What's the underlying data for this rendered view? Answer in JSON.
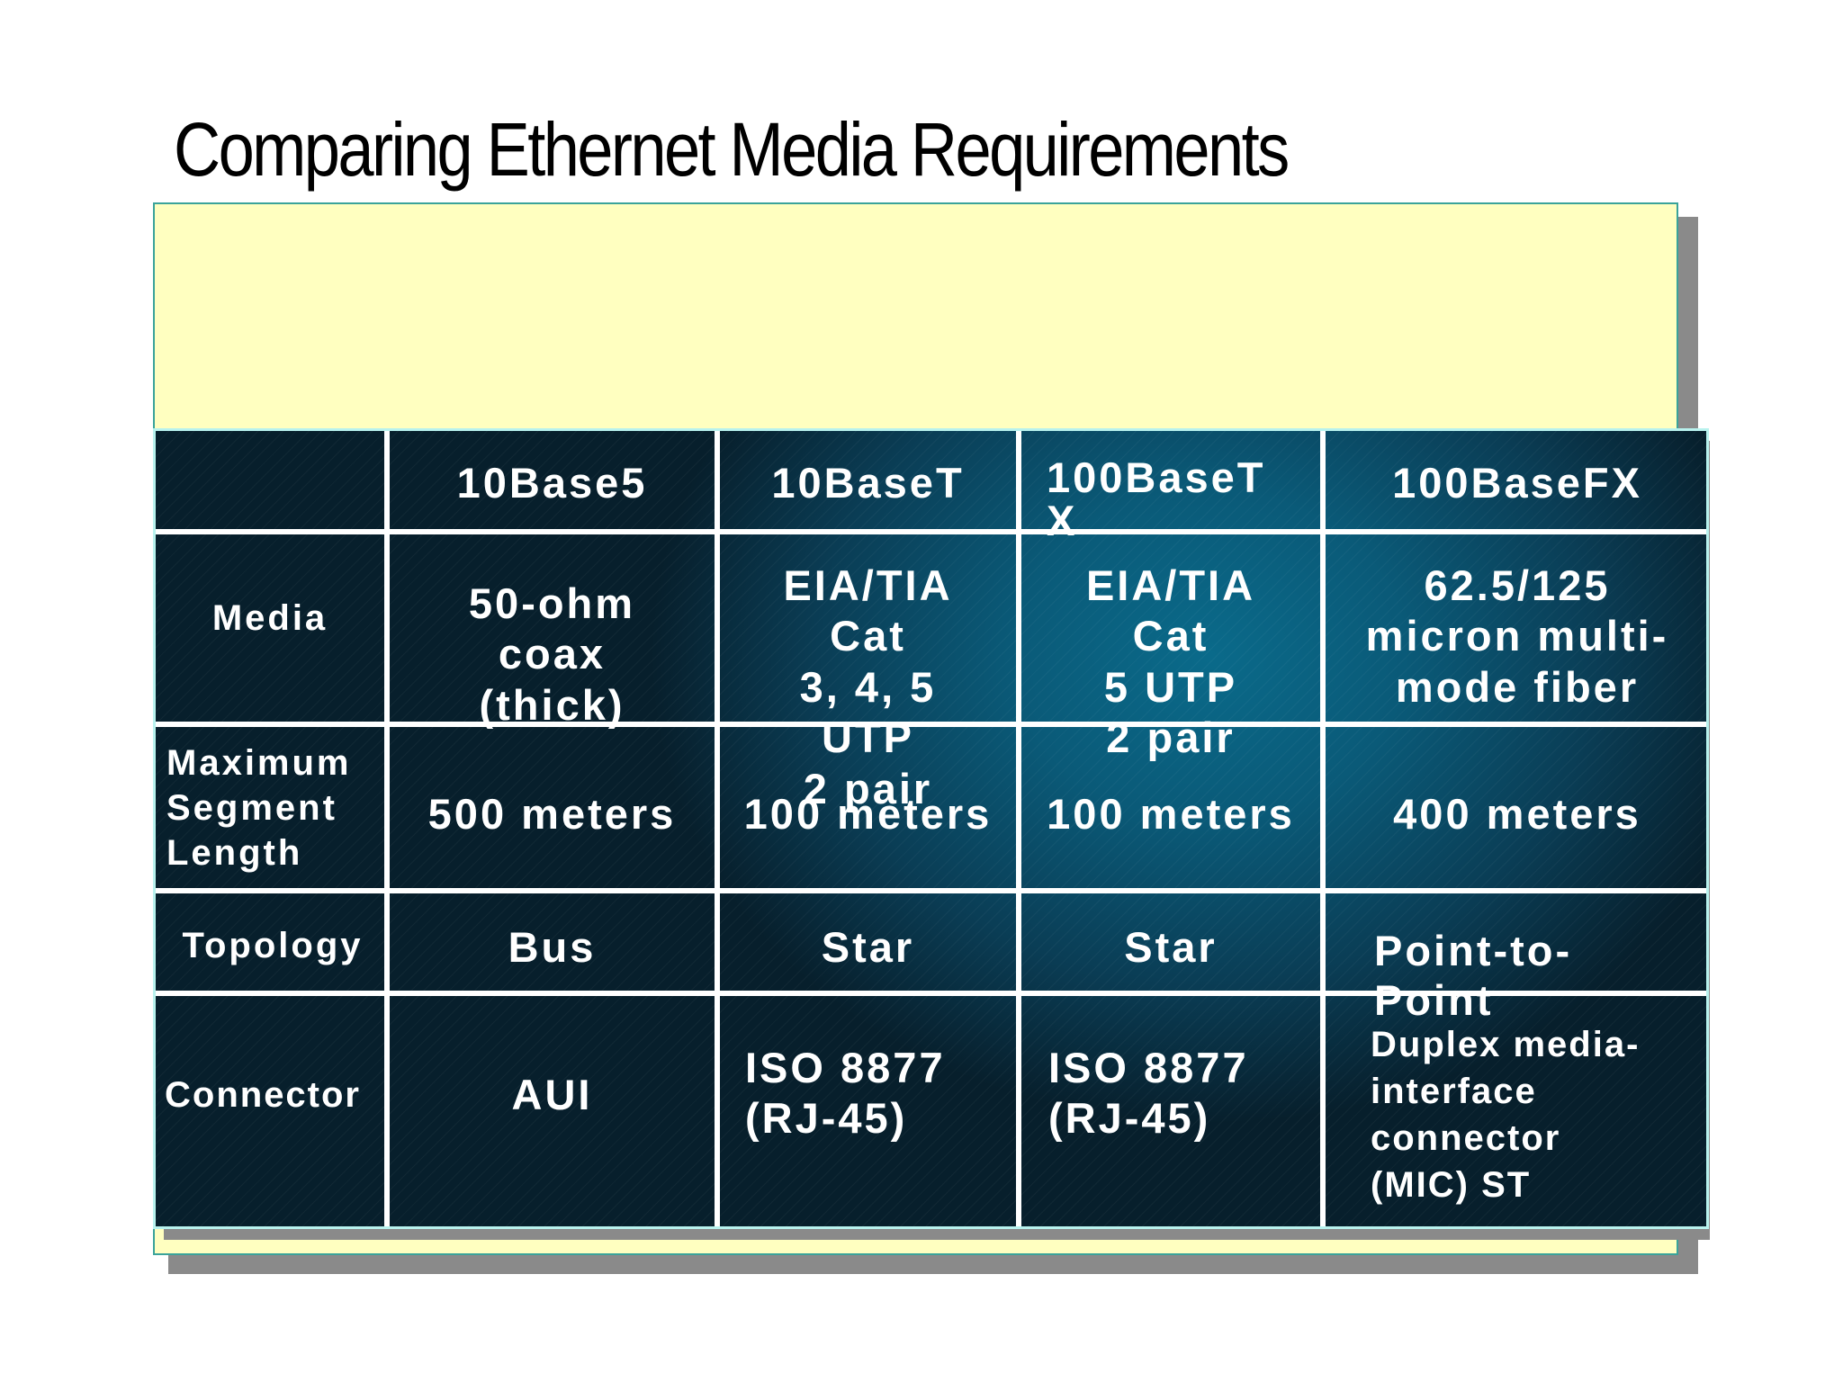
{
  "title": "Comparing Ethernet Media Requirements",
  "table": {
    "headers": [
      "",
      "10Base5",
      "10BaseT",
      "100BaseT\nX",
      "100BaseFX"
    ],
    "rows": [
      {
        "label": "Media",
        "cells": [
          "50-ohm\ncoax\n(thick)",
          "EIA/TIA\nCat\n3, 4, 5\nUTP\n2 pair",
          "EIA/TIA\nCat\n5 UTP\n2 pair",
          "62.5/125\nmicron multi-\nmode fiber"
        ]
      },
      {
        "label": "Maximum\nSegment\nLength",
        "cells": [
          "500 meters",
          "100 meters",
          "100 meters",
          "400 meters"
        ]
      },
      {
        "label": "Topology",
        "cells": [
          "Bus",
          "Star",
          "Star",
          "Point-to-\nPoint"
        ]
      },
      {
        "label": "Connector",
        "cells": [
          "AUI",
          "ISO 8877\n(RJ-45)",
          "ISO 8877\n(RJ-45)",
          "Duplex media-\ninterface\nconnector\n (MIC) ST"
        ]
      }
    ]
  },
  "colors": {
    "panel_background": "#ffffc0",
    "table_background": "#0a4a64",
    "grid_lines": "#ffffff",
    "text": "#ffffff"
  }
}
